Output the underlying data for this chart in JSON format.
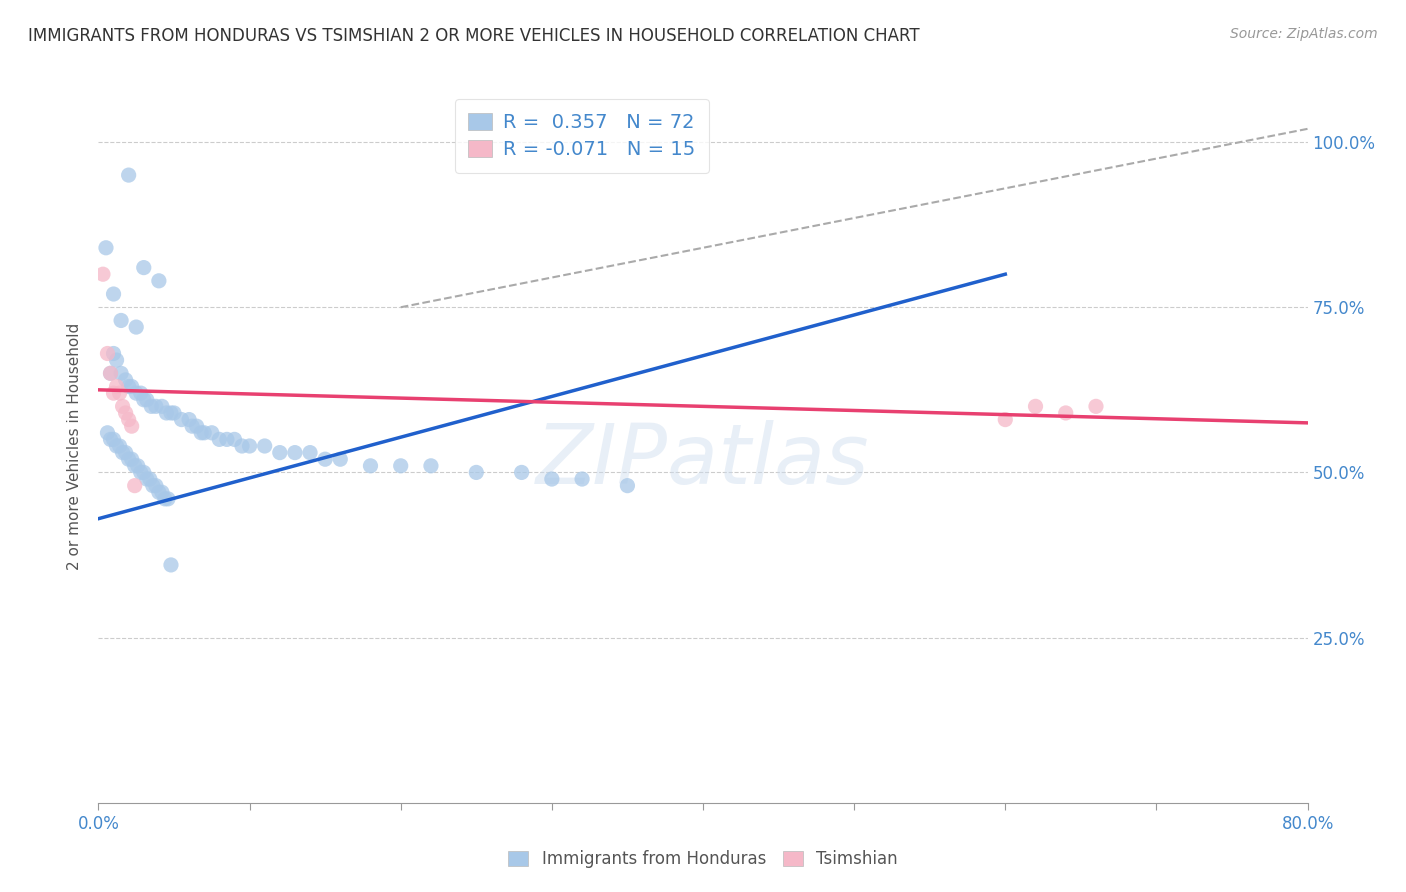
{
  "title": "IMMIGRANTS FROM HONDURAS VS TSIMSHIAN 2 OR MORE VEHICLES IN HOUSEHOLD CORRELATION CHART",
  "source": "Source: ZipAtlas.com",
  "ylabel": "2 or more Vehicles in Household",
  "xlim": [
    0.0,
    0.8
  ],
  "ylim": [
    0.0,
    1.08
  ],
  "xtick_vals": [
    0.0,
    0.1,
    0.2,
    0.3,
    0.4,
    0.5,
    0.6,
    0.7,
    0.8
  ],
  "xtick_label_left": "0.0%",
  "xtick_label_right": "80.0%",
  "ytick_vals": [
    0.25,
    0.5,
    0.75,
    1.0
  ],
  "ytick_labels": [
    "25.0%",
    "50.0%",
    "75.0%",
    "100.0%"
  ],
  "legend_blue_label": "Immigrants from Honduras",
  "legend_pink_label": "Tsimshian",
  "blue_R": 0.357,
  "blue_N": 72,
  "pink_R": -0.071,
  "pink_N": 15,
  "blue_color": "#a8c8e8",
  "pink_color": "#f5b8c8",
  "blue_line_color": "#2060cc",
  "pink_line_color": "#e84070",
  "dashed_line_color": "#aaaaaa",
  "background_color": "#ffffff",
  "watermark": "ZIPatlas",
  "blue_scatter_x": [
    0.02,
    0.005,
    0.03,
    0.04,
    0.01,
    0.015,
    0.025,
    0.01,
    0.012,
    0.008,
    0.015,
    0.018,
    0.02,
    0.022,
    0.025,
    0.028,
    0.03,
    0.032,
    0.035,
    0.038,
    0.042,
    0.045,
    0.048,
    0.05,
    0.055,
    0.06,
    0.062,
    0.065,
    0.068,
    0.07,
    0.075,
    0.08,
    0.085,
    0.09,
    0.095,
    0.1,
    0.11,
    0.12,
    0.13,
    0.14,
    0.15,
    0.16,
    0.18,
    0.2,
    0.22,
    0.25,
    0.28,
    0.3,
    0.32,
    0.35,
    0.006,
    0.008,
    0.01,
    0.012,
    0.014,
    0.016,
    0.018,
    0.02,
    0.022,
    0.024,
    0.026,
    0.028,
    0.03,
    0.032,
    0.034,
    0.036,
    0.038,
    0.04,
    0.042,
    0.044,
    0.046,
    0.048
  ],
  "blue_scatter_y": [
    0.95,
    0.84,
    0.81,
    0.79,
    0.77,
    0.73,
    0.72,
    0.68,
    0.67,
    0.65,
    0.65,
    0.64,
    0.63,
    0.63,
    0.62,
    0.62,
    0.61,
    0.61,
    0.6,
    0.6,
    0.6,
    0.59,
    0.59,
    0.59,
    0.58,
    0.58,
    0.57,
    0.57,
    0.56,
    0.56,
    0.56,
    0.55,
    0.55,
    0.55,
    0.54,
    0.54,
    0.54,
    0.53,
    0.53,
    0.53,
    0.52,
    0.52,
    0.51,
    0.51,
    0.51,
    0.5,
    0.5,
    0.49,
    0.49,
    0.48,
    0.56,
    0.55,
    0.55,
    0.54,
    0.54,
    0.53,
    0.53,
    0.52,
    0.52,
    0.51,
    0.51,
    0.5,
    0.5,
    0.49,
    0.49,
    0.48,
    0.48,
    0.47,
    0.47,
    0.46,
    0.46,
    0.36
  ],
  "pink_scatter_x": [
    0.003,
    0.006,
    0.008,
    0.01,
    0.012,
    0.014,
    0.016,
    0.018,
    0.02,
    0.022,
    0.024,
    0.6,
    0.62,
    0.64,
    0.66
  ],
  "pink_scatter_y": [
    0.8,
    0.68,
    0.65,
    0.62,
    0.63,
    0.62,
    0.6,
    0.59,
    0.58,
    0.57,
    0.48,
    0.58,
    0.6,
    0.59,
    0.6
  ],
  "blue_trend_x": [
    0.0,
    0.6
  ],
  "blue_trend_y": [
    0.43,
    0.8
  ],
  "pink_trend_x": [
    0.0,
    0.8
  ],
  "pink_trend_y": [
    0.625,
    0.575
  ],
  "dashed_trend_x": [
    0.2,
    0.8
  ],
  "dashed_trend_y": [
    0.75,
    1.02
  ]
}
